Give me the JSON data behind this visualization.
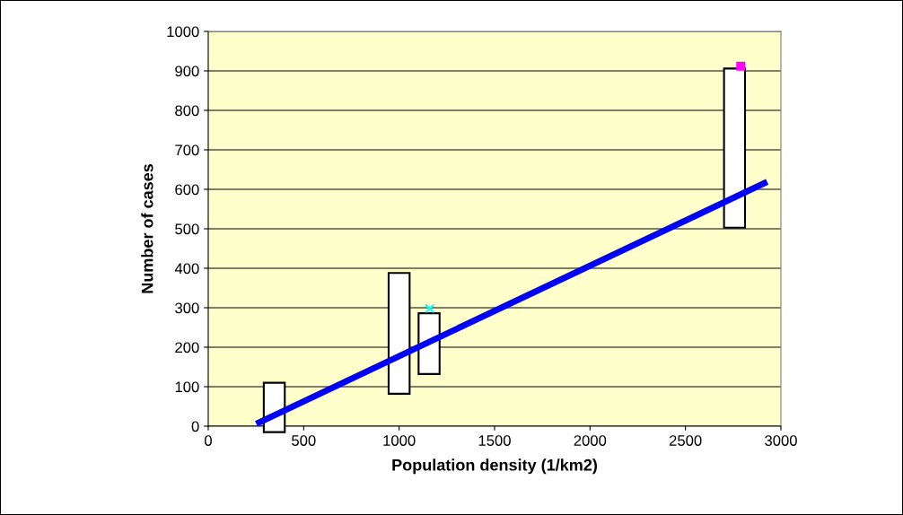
{
  "chart_data": {
    "type": "bar",
    "xlabel": "Population density (1/km2)",
    "ylabel": "Number of cases",
    "xlim": [
      0,
      3000
    ],
    "xticks": [
      0,
      500,
      1000,
      1500,
      2000,
      2500,
      3000
    ],
    "ylim": [
      0,
      1000
    ],
    "yticks": [
      0,
      100,
      200,
      300,
      400,
      500,
      600,
      700,
      800,
      900,
      1000
    ],
    "grid": "y",
    "series": [
      {
        "x": [
          346,
          1000,
          1157,
          2757
        ],
        "base": [
          -15,
          82,
          132,
          503
        ],
        "values": [
          125,
          306,
          154,
          403
        ],
        "color": "#ffffff"
      },
      {
        "type": "scatter",
        "x": [
          1160
        ],
        "values": [
          298
        ],
        "color": "#00ffff",
        "marker": "cross"
      },
      {
        "type": "scatter",
        "x": [
          2790
        ],
        "values": [
          912
        ],
        "color": "#ff00ff",
        "marker": "square"
      },
      {
        "type": "line",
        "x": [
          252,
          2928
        ],
        "values": [
          6,
          619
        ],
        "color": "#0000ff"
      }
    ]
  }
}
